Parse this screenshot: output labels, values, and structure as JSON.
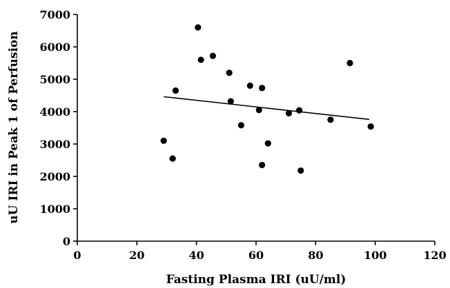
{
  "chart_data": {
    "type": "scatter",
    "xlabel": "Fasting Plasma IRI (uU/ml)",
    "ylabel": "uU IRI in Peak 1 of Perfusion",
    "xlim": [
      0,
      120
    ],
    "ylim": [
      0,
      7000
    ],
    "xticks": [
      0,
      20,
      40,
      60,
      80,
      100,
      120
    ],
    "yticks": [
      0,
      1000,
      2000,
      3000,
      4000,
      5000,
      6000,
      7000
    ],
    "grid": false,
    "legend": "none",
    "points": [
      {
        "x": 29,
        "y": 3100
      },
      {
        "x": 32,
        "y": 2550
      },
      {
        "x": 33,
        "y": 4650
      },
      {
        "x": 40.5,
        "y": 6600
      },
      {
        "x": 41.5,
        "y": 5600
      },
      {
        "x": 45.5,
        "y": 5720
      },
      {
        "x": 51,
        "y": 5200
      },
      {
        "x": 51.5,
        "y": 4320
      },
      {
        "x": 55,
        "y": 3580
      },
      {
        "x": 58,
        "y": 4800
      },
      {
        "x": 61,
        "y": 4050
      },
      {
        "x": 62,
        "y": 4730
      },
      {
        "x": 62,
        "y": 2350
      },
      {
        "x": 64,
        "y": 3020
      },
      {
        "x": 71,
        "y": 3950
      },
      {
        "x": 74.5,
        "y": 4040
      },
      {
        "x": 75,
        "y": 2180
      },
      {
        "x": 85,
        "y": 3750
      },
      {
        "x": 91.5,
        "y": 5500
      },
      {
        "x": 98.5,
        "y": 3540
      }
    ],
    "trendline": {
      "x": [
        29,
        98
      ],
      "y": [
        4460,
        3760
      ]
    },
    "colors": {
      "marks": "#000000"
    }
  }
}
